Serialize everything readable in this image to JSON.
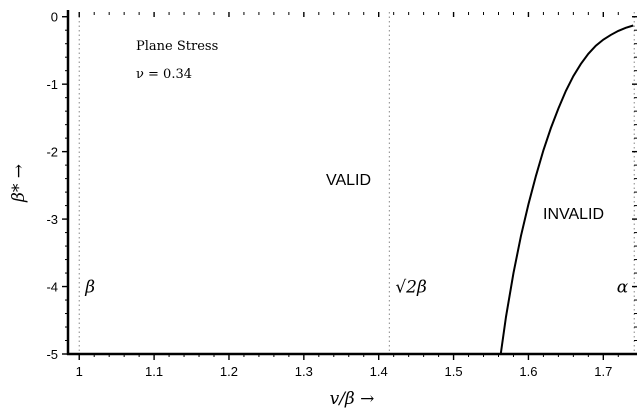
{
  "chart_data": {
    "type": "line",
    "xlabel": "v/β →",
    "ylabel": "β* →",
    "xlim": [
      0.985,
      1.745
    ],
    "ylim": [
      -5,
      0.07
    ],
    "x_ticks": [
      1,
      1.1,
      1.2,
      1.3,
      1.4,
      1.5,
      1.6,
      1.7
    ],
    "x_tick_labels": [
      "1",
      "1.1",
      "1.2",
      "1.3",
      "1.4",
      "1.5",
      "1.6",
      "1.7"
    ],
    "y_ticks": [
      0,
      -1,
      -2,
      -3,
      -4,
      -5
    ],
    "y_tick_labels": [
      "0",
      "-1",
      "-2",
      "-3",
      "-4",
      "-5"
    ],
    "grid": false,
    "guides": [
      {
        "x": 1.0,
        "label": "β"
      },
      {
        "x": 1.4142,
        "label": "√2β"
      },
      {
        "x": 1.7413,
        "label": "α"
      }
    ],
    "annotations": {
      "plane_stress": "Plane Stress",
      "nu": "ν = 0.34",
      "valid": "VALID",
      "invalid": "INVALID"
    },
    "series": [
      {
        "x": [
          1.563,
          1.57,
          1.58,
          1.59,
          1.6,
          1.61,
          1.62,
          1.63,
          1.64,
          1.65,
          1.66,
          1.67,
          1.68,
          1.69,
          1.7,
          1.71,
          1.72,
          1.73,
          1.74
        ],
        "y": [
          -5.0,
          -4.45,
          -3.8,
          -3.25,
          -2.78,
          -2.36,
          -1.98,
          -1.65,
          -1.36,
          -1.1,
          -0.88,
          -0.7,
          -0.55,
          -0.43,
          -0.34,
          -0.27,
          -0.21,
          -0.165,
          -0.13
        ]
      }
    ]
  }
}
